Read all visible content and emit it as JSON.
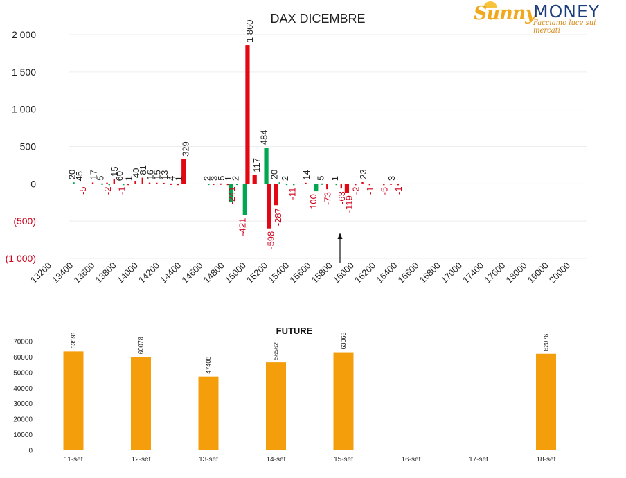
{
  "logo": {
    "brand_sunny": "Sunny",
    "brand_money": "MONEY",
    "tagline": "Facciamo luce sui mercati"
  },
  "colors": {
    "call": "#e30613",
    "put": "#00a650",
    "future": "#f59e0b",
    "text_neg": "#d0021b"
  },
  "chart_data": [
    {
      "type": "bar",
      "title": "DAX DICEMBRE",
      "ylim": [
        -1000,
        2000
      ],
      "y_ticks": [
        {
          "v": 2000,
          "label": "2 000"
        },
        {
          "v": 1500,
          "label": "1 500"
        },
        {
          "v": 1000,
          "label": "1 000"
        },
        {
          "v": 500,
          "label": "500"
        },
        {
          "v": 0,
          "label": "0"
        },
        {
          "v": -500,
          "label": "(500)"
        },
        {
          "v": -1000,
          "label": "(1 000)"
        }
      ],
      "categories": [
        "13200",
        "13400",
        "13600",
        "13800",
        "14000",
        "14200",
        "14400",
        "14600",
        "14800",
        "15000",
        "15200",
        "15400",
        "15600",
        "15800",
        "16000",
        "16200",
        "16400",
        "16600",
        "16800",
        "17000",
        "17400",
        "17600",
        "18000",
        "19000",
        "20000"
      ],
      "series": [
        {
          "values": [
            [
              0,
              20
            ],
            [
              null,
              null
            ],
            [
              0,
              0
            ],
            [
              17,
              0
            ],
            [
              0,
              5
            ],
            [
              15,
              -2
            ],
            [
              60,
              0
            ],
            [
              0,
              -1
            ],
            [
              1,
              0
            ],
            [
              40,
              0
            ],
            [
              81,
              0
            ],
            [
              16,
              0
            ],
            [
              15,
              0
            ],
            [
              13,
              0
            ],
            [
              4,
              0
            ],
            [
              1,
              0
            ],
            [
              329,
              0
            ],
            [
              null,
              null
            ],
            [
              null,
              null
            ],
            [
              0,
              2
            ],
            [
              3,
              0
            ],
            [
              5,
              0
            ],
            [
              1,
              -241
            ],
            [
              0,
              2
            ],
            [
              0,
              -421
            ],
            [
              1860,
              0
            ],
            [
              117,
              0
            ],
            [
              0,
              484
            ],
            [
              -598,
              0
            ],
            [
              -287,
              20
            ],
            [
              0,
              2
            ],
            [
              0,
              -11
            ],
            [
              null,
              null
            ],
            [
              14,
              0
            ],
            [
              0,
              -100
            ],
            [
              0,
              5
            ],
            [
              -73,
              0
            ],
            [
              0,
              1
            ],
            [
              -63,
              0
            ],
            [
              -119,
              0
            ],
            [
              -2,
              0
            ],
            [
              23,
              0
            ],
            [
              -1,
              0
            ],
            [
              null,
              null
            ],
            [
              -5,
              0
            ],
            [
              3,
              0
            ],
            [
              -1,
              0
            ]
          ]
        }
      ],
      "labels": [
        {
          "slot": 0,
          "text": "20",
          "side": "up"
        },
        {
          "slot": 1,
          "text": "45",
          "side": "up"
        },
        {
          "slot": 1.5,
          "text": "-5",
          "side": "down"
        },
        {
          "slot": 3,
          "text": "17",
          "side": "up"
        },
        {
          "slot": 4,
          "text": "5",
          "side": "up"
        },
        {
          "slot": 5,
          "text": "-2",
          "side": "down"
        },
        {
          "slot": 6,
          "text": "15",
          "side": "up"
        },
        {
          "slot": 6.7,
          "text": "60",
          "side": "up"
        },
        {
          "slot": 7,
          "text": "-1",
          "side": "down"
        },
        {
          "slot": 8,
          "text": "1",
          "side": "up"
        },
        {
          "slot": 9,
          "text": "40",
          "side": "up"
        },
        {
          "slot": 10,
          "text": "81",
          "side": "up"
        },
        {
          "slot": 11,
          "text": "16",
          "side": "up"
        },
        {
          "slot": 12,
          "text": "15",
          "side": "up"
        },
        {
          "slot": 13,
          "text": "13",
          "side": "up"
        },
        {
          "slot": 14,
          "text": "4",
          "side": "up"
        },
        {
          "slot": 15,
          "text": "1",
          "side": "up"
        },
        {
          "slot": 16,
          "text": "329",
          "side": "up"
        },
        {
          "slot": 19,
          "text": "2",
          "side": "up"
        },
        {
          "slot": 20,
          "text": "3",
          "side": "up"
        },
        {
          "slot": 21,
          "text": "5",
          "side": "up"
        },
        {
          "slot": 22,
          "text": "1",
          "side": "up"
        },
        {
          "slot": 22.5,
          "text": "-241",
          "side": "down"
        },
        {
          "slot": 23,
          "text": "2",
          "side": "up"
        },
        {
          "slot": 24,
          "text": "-421",
          "side": "down"
        },
        {
          "slot": 25,
          "text": "1 860",
          "side": "up"
        },
        {
          "slot": 26,
          "text": "117",
          "side": "up"
        },
        {
          "slot": 27,
          "text": "484",
          "side": "up"
        },
        {
          "slot": 28,
          "text": "-598",
          "side": "down"
        },
        {
          "slot": 28.5,
          "text": "20",
          "side": "up"
        },
        {
          "slot": 29,
          "text": "-287",
          "side": "down"
        },
        {
          "slot": 30,
          "text": "2",
          "side": "up"
        },
        {
          "slot": 31,
          "text": "-11",
          "side": "down"
        },
        {
          "slot": 33,
          "text": "14",
          "side": "up"
        },
        {
          "slot": 34,
          "text": "-100",
          "side": "down"
        },
        {
          "slot": 35,
          "text": "5",
          "side": "up"
        },
        {
          "slot": 36,
          "text": "-73",
          "side": "down"
        },
        {
          "slot": 37,
          "text": "1",
          "side": "up"
        },
        {
          "slot": 38,
          "text": "-63",
          "side": "down"
        },
        {
          "slot": 39,
          "text": "-119",
          "side": "down"
        },
        {
          "slot": 40,
          "text": "-2",
          "side": "down"
        },
        {
          "slot": 41,
          "text": "23",
          "side": "up"
        },
        {
          "slot": 42,
          "text": "-1",
          "side": "down"
        },
        {
          "slot": 44,
          "text": "-5",
          "side": "down"
        },
        {
          "slot": 45,
          "text": "3",
          "side": "up"
        },
        {
          "slot": 46,
          "text": "-1",
          "side": "down"
        }
      ],
      "marker": {
        "category": "15800",
        "shape": "arrow-up"
      }
    },
    {
      "type": "bar",
      "title": "FUTURE",
      "ylim": [
        0,
        70000
      ],
      "y_ticks": [
        70000,
        60000,
        50000,
        40000,
        30000,
        20000,
        10000,
        0
      ],
      "categories": [
        "11-set",
        "12-set",
        "13-set",
        "14-set",
        "15-set",
        "16-set",
        "17-set",
        "18-set"
      ],
      "values": [
        63591,
        60078,
        47408,
        56562,
        63063,
        null,
        null,
        62076
      ],
      "value_labels": [
        "63591",
        "60078",
        "47408",
        "56562",
        "63063",
        "",
        "",
        "62076"
      ]
    }
  ]
}
